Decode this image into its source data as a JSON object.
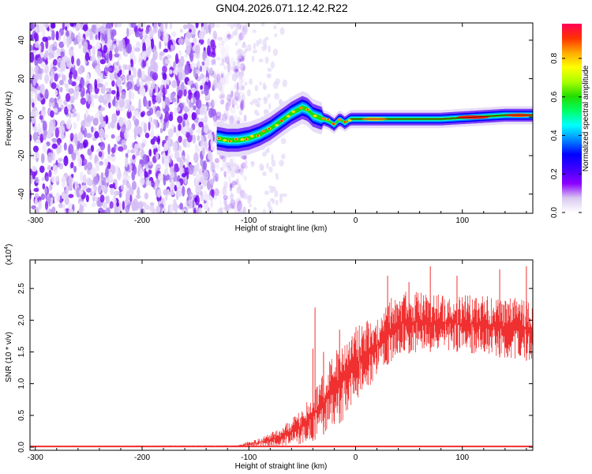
{
  "title": "GN04.2026.071.12.42.R22",
  "chart_data": [
    {
      "type": "heatmap",
      "xlabel": "Height of straight line (km)",
      "ylabel": "Frequency (Hz)",
      "xlim": [
        -305,
        166
      ],
      "ylim": [
        -50,
        49
      ],
      "x_ticks": [
        -300,
        -200,
        -100,
        0,
        100
      ],
      "y_ticks": [
        -40,
        -20,
        0,
        20,
        40
      ],
      "colorbar": {
        "label": "Normalized spectral amplitude",
        "range": [
          0.0,
          0.98
        ],
        "ticks": [
          0.0,
          0.2,
          0.4,
          0.6,
          0.8
        ],
        "colormap": [
          "#ffffff",
          "#d8c8f0",
          "#8c00ff",
          "#3f00ff",
          "#0000ff",
          "#0088ff",
          "#00ffff",
          "#00ff66",
          "#22dd00",
          "#aaff00",
          "#ffff00",
          "#ffaa00",
          "#ff3300",
          "#ff0055"
        ]
      },
      "ridge": {
        "x": [
          -130,
          -120,
          -110,
          -100,
          -90,
          -80,
          -70,
          -60,
          -50,
          -45,
          -40,
          -35,
          -30,
          -25,
          -20,
          -15,
          -10,
          -5,
          0,
          20,
          50,
          80,
          110,
          140,
          166
        ],
        "y": [
          -11,
          -12,
          -12,
          -11,
          -9,
          -6,
          -2,
          2,
          5,
          4,
          1,
          0,
          -1,
          -2,
          -4,
          -1,
          -3,
          -1,
          -1,
          -1,
          -1,
          -1,
          0,
          1,
          1
        ]
      },
      "noise_region": {
        "x_from": -305,
        "x_to": -118
      }
    },
    {
      "type": "area",
      "xlabel": "Height of straight line (km)",
      "ylabel": "SNR (10 * v/v)",
      "scale_label": "(x10",
      "scale_exp": "4",
      "xlim": [
        -305,
        166
      ],
      "ylim": [
        -0.05,
        2.95
      ],
      "x_ticks": [
        -300,
        -200,
        -100,
        0,
        100
      ],
      "y_ticks": [
        0.0,
        0.5,
        1.0,
        1.5,
        2.0,
        2.5
      ],
      "series_color": "#f03030",
      "envelope": {
        "x": [
          -305,
          -110,
          -90,
          -70,
          -50,
          -40,
          -30,
          -20,
          -10,
          0,
          10,
          20,
          30,
          40,
          60,
          80,
          100,
          120,
          140,
          166
        ],
        "lower": [
          0.0,
          0.0,
          0.0,
          0.02,
          0.05,
          0.1,
          0.2,
          0.3,
          0.45,
          0.7,
          0.9,
          1.1,
          1.3,
          1.45,
          1.5,
          1.5,
          1.5,
          1.45,
          1.4,
          1.35
        ],
        "upper": [
          0.02,
          0.03,
          0.15,
          0.3,
          0.6,
          0.9,
          1.2,
          1.5,
          1.7,
          1.9,
          2.0,
          2.1,
          2.3,
          2.45,
          2.45,
          2.4,
          2.4,
          2.4,
          2.35,
          2.35
        ],
        "peaks": [
          [
            -40,
            1.55
          ],
          [
            -38,
            2.2
          ],
          [
            -30,
            1.5
          ],
          [
            -15,
            1.85
          ],
          [
            30,
            2.7
          ],
          [
            50,
            2.6
          ],
          [
            70,
            2.85
          ],
          [
            95,
            2.7
          ],
          [
            135,
            2.8
          ],
          [
            160,
            2.85
          ]
        ]
      }
    }
  ]
}
